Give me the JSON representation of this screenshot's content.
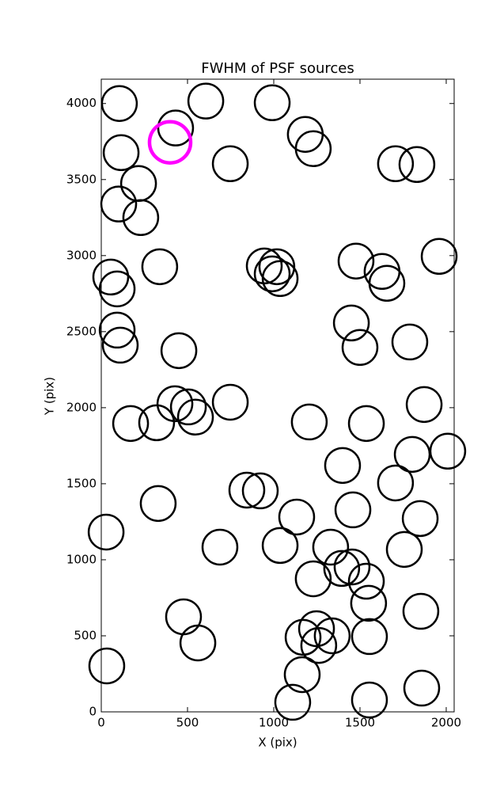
{
  "chart_data": {
    "type": "scatter",
    "title": "FWHM of PSF sources",
    "x_label": "X (pix)",
    "y_label": "Y (pix)",
    "xlim": [
      0,
      2046
    ],
    "ylim": [
      0,
      4160
    ],
    "xticks": [
      0,
      500,
      1000,
      1500,
      2000
    ],
    "yticks": [
      0,
      500,
      1000,
      1500,
      2000,
      2500,
      3000,
      3500,
      4000
    ],
    "series": [
      {
        "color": "#000000",
        "x": [
          105,
          431,
          606,
          991,
          1183,
          1229,
          115,
          748,
          1706,
          1830,
          216,
          101,
          229,
          339,
          55,
          92,
          945,
          1018,
          991,
          1037,
          1477,
          1628,
          1656,
          1959,
          92,
          110,
          450,
          1450,
          1500,
          1789,
          748,
          427,
          505,
          546,
          321,
          170,
          1206,
          1537,
          1872,
          1803,
          2009,
          1399,
          1706,
          844,
          922,
          330,
          1459,
          1133,
          1849,
          28,
          688,
          1037,
          1330,
          1757,
          1229,
          1394,
          1454,
          1537,
          1550,
          1853,
          477,
          560,
          1170,
          1248,
          1261,
          1339,
          1555,
          32,
          1165,
          1110,
          1555,
          1858
        ],
        "values": [
          4000,
          3839,
          4016,
          4005,
          3797,
          3703,
          3677,
          3604,
          3604,
          3599,
          3474,
          3339,
          3250,
          2927,
          2859,
          2781,
          2932,
          2927,
          2880,
          2849,
          2964,
          2896,
          2818,
          2995,
          2510,
          2411,
          2375,
          2557,
          2396,
          2432,
          2036,
          2026,
          2005,
          1938,
          1901,
          1896,
          1906,
          1896,
          2021,
          1693,
          1714,
          1620,
          1505,
          1458,
          1453,
          1370,
          1328,
          1281,
          1271,
          1182,
          1083,
          1094,
          1083,
          1068,
          875,
          943,
          953,
          859,
          714,
          661,
          625,
          453,
          490,
          547,
          437,
          500,
          495,
          302,
          245,
          63,
          78,
          156
        ]
      },
      {
        "color": "#ff00ff",
        "x": [
          399
        ],
        "values": [
          3745
        ]
      }
    ]
  }
}
